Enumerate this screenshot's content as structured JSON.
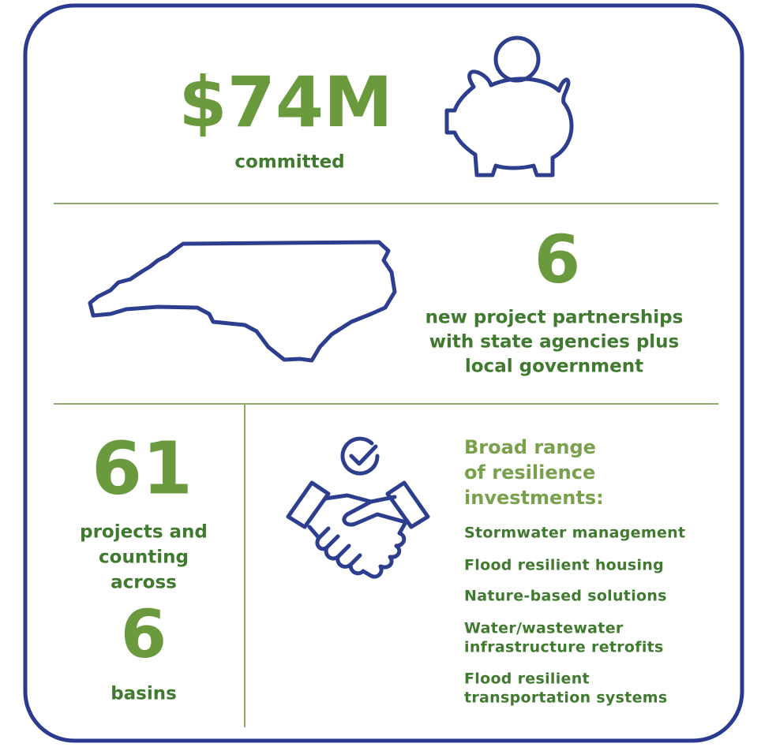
{
  "funding": {
    "amount": "$74M",
    "label": "committed"
  },
  "partnerships": {
    "count": "6",
    "lines": [
      "new project partnerships",
      "with state agencies plus",
      "local government"
    ]
  },
  "projects": {
    "count": "61",
    "lines": [
      "projects and",
      "counting",
      "across"
    ],
    "basin_count": "6",
    "basin_label": "basins"
  },
  "investments": {
    "heading": [
      "Broad range",
      "of resilience",
      "investments:"
    ],
    "items": [
      [
        "Stormwater management"
      ],
      [
        "Flood resilient housing"
      ],
      [
        "Nature-based solutions"
      ],
      [
        "Water/wastewater",
        "infrastructure retrofits"
      ],
      [
        "Flood resilient",
        "transportation systems"
      ]
    ]
  }
}
